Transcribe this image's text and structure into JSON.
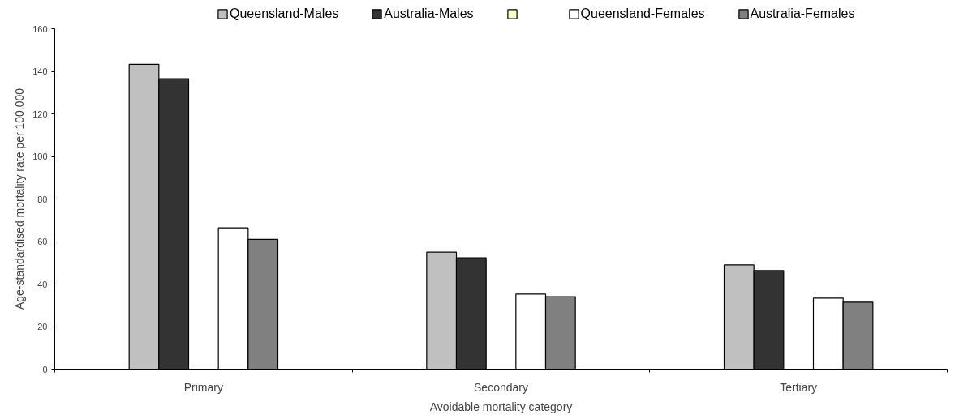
{
  "chart_data": {
    "type": "bar",
    "xlabel": "Avoidable mortality category",
    "ylabel": "Age-standardised mortality rate per 100,000",
    "categories": [
      "Primary",
      "Secondary",
      "Tertiary"
    ],
    "series": [
      {
        "name": "Queensland-Males",
        "color": "#c0c0c0",
        "values": [
          143.3,
          55,
          49
        ]
      },
      {
        "name": "Australia-Males",
        "color": "#333333",
        "values": [
          136.5,
          52.3,
          46.3
        ]
      },
      {
        "color": "#ffffcc",
        "values": [
          null,
          null,
          null
        ]
      },
      {
        "name": "Queensland-Females",
        "color": "#ffffff",
        "values": [
          66.4,
          35.3,
          33.4
        ]
      },
      {
        "name": "Australia-Females",
        "color": "#808080",
        "values": [
          61,
          34.1,
          31.5
        ]
      }
    ],
    "ylim": [
      0,
      160
    ],
    "yticks": [
      0,
      20,
      40,
      60,
      80,
      100,
      120,
      140,
      160
    ],
    "grid": false,
    "legend": "top"
  }
}
